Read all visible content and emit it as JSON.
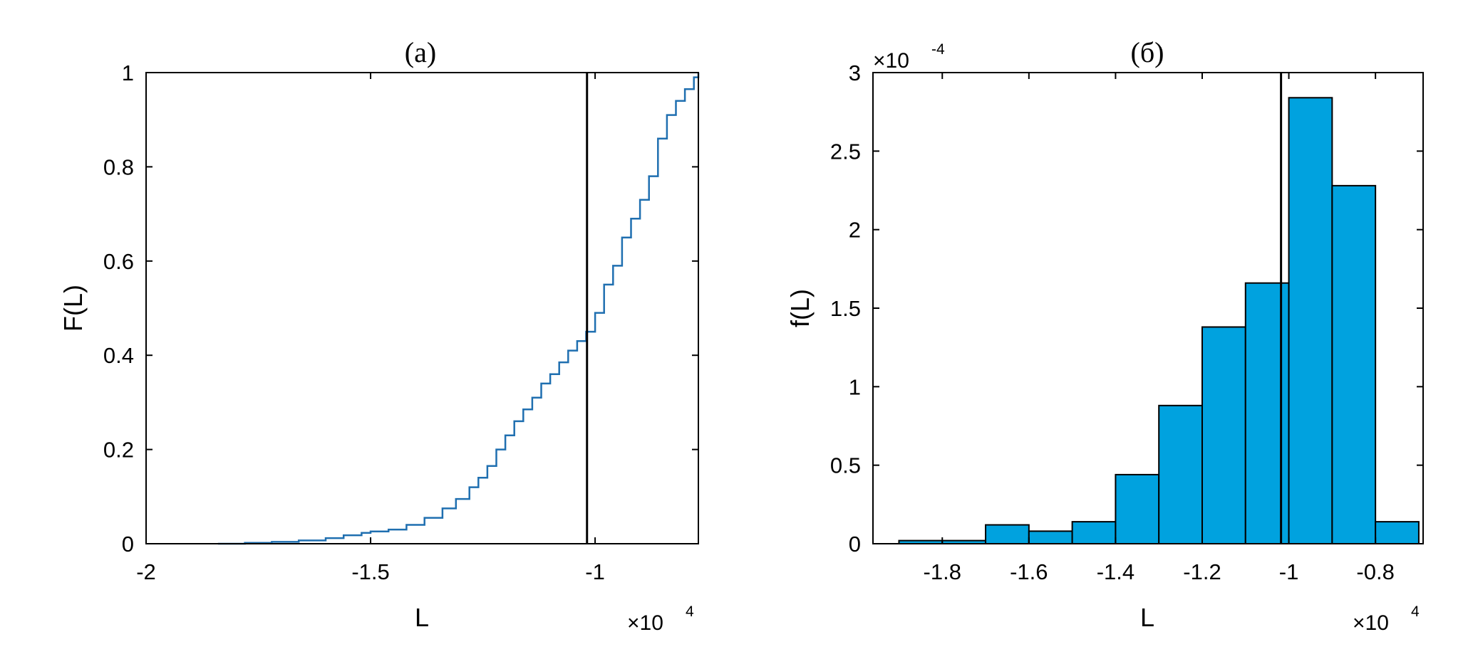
{
  "chart_data": [
    {
      "type": "line",
      "title": "(a)",
      "xlabel": "L",
      "ylabel": "F(L)",
      "x_multiplier": "×10",
      "x_multiplier_exp": "4",
      "xlim": [
        -2,
        -0.77
      ],
      "ylim": [
        0,
        1
      ],
      "xticks": [
        -2,
        -1.5,
        -1
      ],
      "xtick_labels": [
        "-2",
        "-1.5",
        "-1"
      ],
      "yticks": [
        0,
        0.2,
        0.4,
        0.6,
        0.8,
        1
      ],
      "ytick_labels": [
        "0",
        "0.2",
        "0.4",
        "0.6",
        "0.8",
        "1"
      ],
      "grid": false,
      "line_color": "#1f6fb0",
      "vline_x": -1.018,
      "series": [
        {
          "x": [
            -1.84,
            -1.78,
            -1.72,
            -1.66,
            -1.6,
            -1.56,
            -1.52,
            -1.5,
            -1.46,
            -1.42,
            -1.38,
            -1.34,
            -1.31,
            -1.28,
            -1.26,
            -1.24,
            -1.22,
            -1.2,
            -1.18,
            -1.16,
            -1.14,
            -1.12,
            -1.1,
            -1.08,
            -1.06,
            -1.04,
            -1.02,
            -1.0,
            -0.98,
            -0.96,
            -0.94,
            -0.92,
            -0.9,
            -0.88,
            -0.86,
            -0.84,
            -0.82,
            -0.8,
            -0.78,
            -0.77
          ],
          "y": [
            0.0,
            0.002,
            0.004,
            0.007,
            0.012,
            0.018,
            0.023,
            0.026,
            0.03,
            0.04,
            0.055,
            0.075,
            0.095,
            0.12,
            0.14,
            0.165,
            0.2,
            0.23,
            0.26,
            0.285,
            0.31,
            0.34,
            0.36,
            0.385,
            0.41,
            0.43,
            0.45,
            0.49,
            0.55,
            0.59,
            0.65,
            0.69,
            0.73,
            0.78,
            0.86,
            0.91,
            0.94,
            0.965,
            0.99,
            1.0
          ]
        }
      ]
    },
    {
      "type": "bar",
      "title": "(б)",
      "xlabel": "L",
      "ylabel": "f(L)",
      "x_multiplier": "×10",
      "x_multiplier_exp": "4",
      "y_multiplier": "×10",
      "y_multiplier_exp": "-4",
      "xlim": [
        -1.96,
        -0.69
      ],
      "ylim": [
        0,
        3
      ],
      "xticks": [
        -1.8,
        -1.6,
        -1.4,
        -1.2,
        -1,
        -0.8
      ],
      "xtick_labels": [
        "-1.8",
        "-1.6",
        "-1.4",
        "-1.2",
        "-1",
        "-0.8"
      ],
      "yticks": [
        0,
        0.5,
        1,
        1.5,
        2,
        2.5,
        3
      ],
      "ytick_labels": [
        "0",
        "0.5",
        "1",
        "1.5",
        "2",
        "2.5",
        "3"
      ],
      "grid": false,
      "bar_color": "#00a2df",
      "vline_x": -1.018,
      "bins": [
        {
          "left": -1.9,
          "right": -1.8,
          "value": 0.02
        },
        {
          "left": -1.8,
          "right": -1.7,
          "value": 0.02
        },
        {
          "left": -1.7,
          "right": -1.6,
          "value": 0.12
        },
        {
          "left": -1.6,
          "right": -1.5,
          "value": 0.08
        },
        {
          "left": -1.5,
          "right": -1.4,
          "value": 0.14
        },
        {
          "left": -1.4,
          "right": -1.3,
          "value": 0.44
        },
        {
          "left": -1.3,
          "right": -1.2,
          "value": 0.88
        },
        {
          "left": -1.2,
          "right": -1.1,
          "value": 1.38
        },
        {
          "left": -1.1,
          "right": -1.0,
          "value": 1.66
        },
        {
          "left": -1.0,
          "right": -0.9,
          "value": 2.84
        },
        {
          "left": -0.9,
          "right": -0.8,
          "value": 2.28
        },
        {
          "left": -0.8,
          "right": -0.7,
          "value": 0.14
        }
      ]
    }
  ]
}
